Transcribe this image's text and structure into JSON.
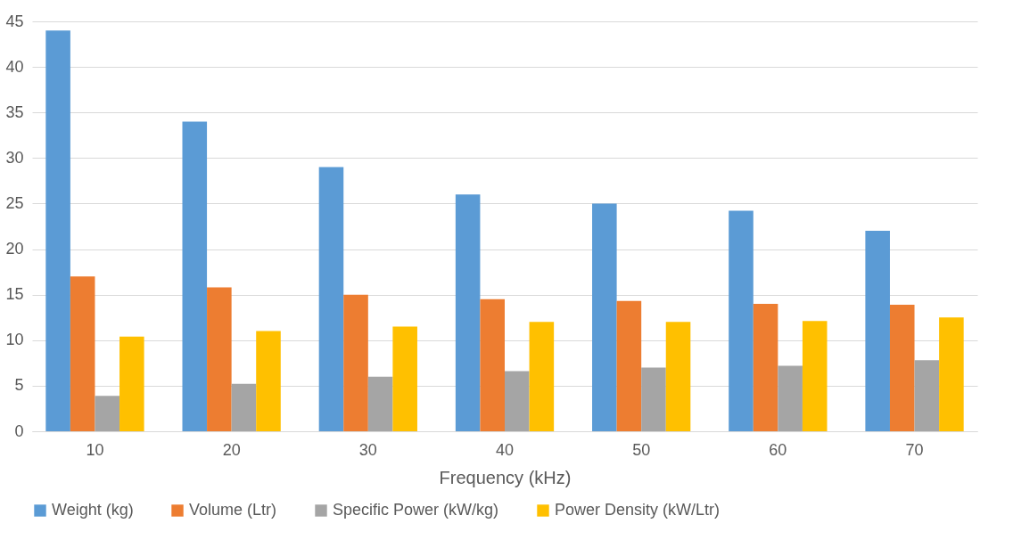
{
  "chart_data": {
    "type": "bar",
    "xlabel": "Frequency (kHz)",
    "categories": [
      "10",
      "20",
      "30",
      "40",
      "50",
      "60",
      "70"
    ],
    "series": [
      {
        "name": "Weight (kg)",
        "color": "#5b9bd5",
        "values": [
          44,
          34,
          29,
          26,
          25,
          24.2,
          22
        ]
      },
      {
        "name": "Volume (Ltr)",
        "color": "#ed7d31",
        "values": [
          17,
          15.8,
          15,
          14.5,
          14.3,
          14,
          13.9
        ]
      },
      {
        "name": "Specific Power (kW/kg)",
        "color": "#a5a5a5",
        "values": [
          3.9,
          5.2,
          6,
          6.6,
          7,
          7.2,
          7.8
        ]
      },
      {
        "name": "Power Density (kW/Ltr)",
        "color": "#ffc000",
        "values": [
          10.4,
          11,
          11.5,
          12,
          12,
          12.1,
          12.5
        ]
      }
    ],
    "ylim": [
      0,
      45
    ],
    "yticks": [
      0,
      5,
      10,
      15,
      20,
      25,
      30,
      35,
      40,
      45
    ],
    "grid": "y",
    "legend": "bottom"
  }
}
